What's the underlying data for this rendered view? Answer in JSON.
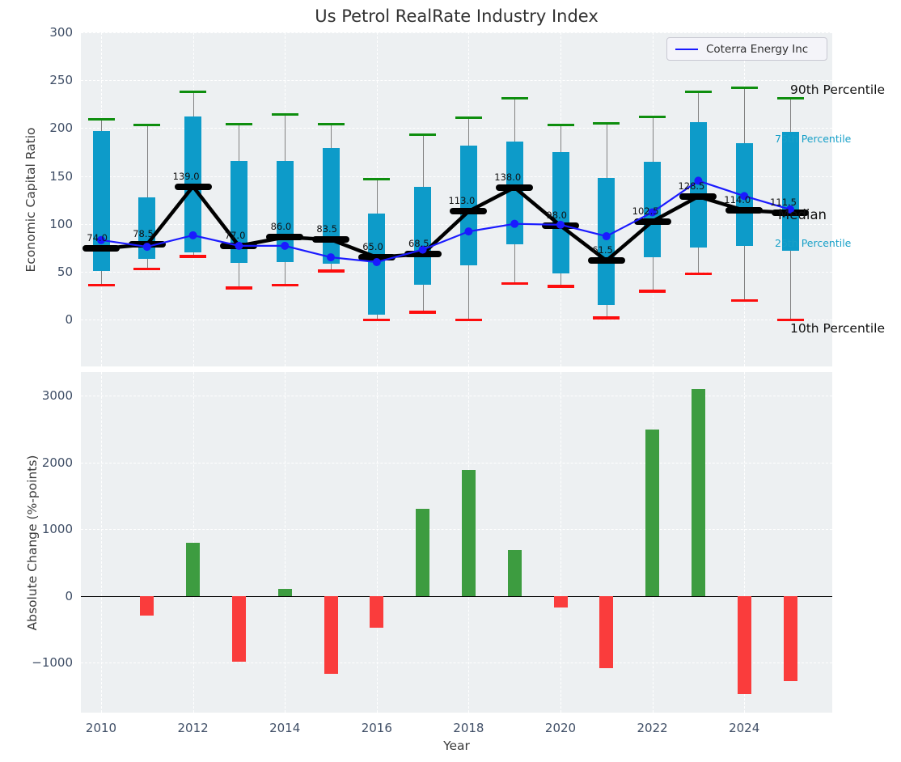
{
  "title": "Us Petrol RealRate Industry Index",
  "legend": {
    "label": "Coterra Energy Inc",
    "line_color": "#1a1aff"
  },
  "annotations": {
    "p90": "90th Percentile",
    "p75": "75th Percentile",
    "median": "Median",
    "p25": "25th Percentile",
    "p10": "10th Percentile"
  },
  "colors": {
    "box_fill": "#0d9bc9",
    "p90_cap": "#0e8e0e",
    "p10_cap": "#fd0d0d",
    "median_line": "#000000",
    "coterra_line": "#1a1aff",
    "bar_positive": "#3d9c40",
    "bar_negative": "#fa3c3c",
    "plot_background": "#edf0f2",
    "tick_text": "#3f4e66",
    "cyan_label": "#18a0c8"
  },
  "chart_data": [
    {
      "type": "boxplot+line",
      "title": "Us Petrol RealRate Industry Index",
      "ylabel": "Economic Capital Ratio",
      "ylim": [
        -50,
        300
      ],
      "yticks": [
        300,
        250,
        200,
        150,
        100,
        50,
        0
      ],
      "grid": true,
      "legend_position": "upper right",
      "years": [
        2010,
        2011,
        2012,
        2013,
        2014,
        2015,
        2016,
        2017,
        2018,
        2019,
        2020,
        2021,
        2022,
        2023,
        2024,
        2025
      ],
      "series": [
        {
          "name": "90th Percentile",
          "values": [
            209,
            203,
            238,
            204,
            214,
            204,
            147,
            193,
            211,
            231,
            203,
            205,
            212,
            238,
            242,
            231
          ]
        },
        {
          "name": "75th Percentile",
          "values": [
            197,
            128,
            212,
            166,
            166,
            179,
            111,
            139,
            182,
            186,
            175,
            148,
            165,
            206,
            184,
            196
          ]
        },
        {
          "name": "Median",
          "values": [
            74.0,
            78.5,
            139.0,
            77.0,
            86.0,
            83.5,
            65.0,
            68.5,
            113.0,
            138.0,
            98.0,
            61.5,
            102.5,
            128.5,
            114.0,
            111.5
          ]
        },
        {
          "name": "25th Percentile",
          "values": [
            51,
            63,
            70,
            59,
            60,
            58,
            5,
            36,
            57,
            79,
            48,
            15,
            65,
            75,
            77,
            72
          ]
        },
        {
          "name": "10th Percentile",
          "values": [
            36,
            53,
            66,
            33,
            36,
            51,
            0,
            8,
            0,
            38,
            35,
            2,
            30,
            48,
            20,
            0
          ]
        },
        {
          "name": "Coterra Energy Inc",
          "values": [
            83,
            76,
            88,
            77,
            77,
            65,
            60,
            73,
            92,
            100,
            99,
            87,
            112,
            145,
            129,
            115
          ]
        }
      ],
      "median_labels": [
        "74.0",
        "78.5",
        "139.0",
        "77.0",
        "86.0",
        "83.5",
        "65.0",
        "68.5",
        "113.0",
        "138.0",
        "98.0",
        "61.5",
        "102.5",
        "128.5",
        "114.0",
        "111.5"
      ]
    },
    {
      "type": "bar",
      "ylabel": "Absolute Change (%-points)",
      "xlabel": "Year",
      "ylim": [
        -1750,
        3350
      ],
      "yticks": [
        3000,
        2000,
        1000,
        0,
        -1000
      ],
      "ytick_labels": [
        "3000",
        "2000",
        "1000",
        "0",
        "−1000"
      ],
      "xticks": [
        2010,
        2012,
        2014,
        2016,
        2018,
        2020,
        2022,
        2024
      ],
      "grid": true,
      "years": [
        2011,
        2012,
        2013,
        2014,
        2015,
        2016,
        2017,
        2018,
        2019,
        2020,
        2021,
        2022,
        2023,
        2024,
        2025
      ],
      "values": [
        -300,
        800,
        -980,
        100,
        -1170,
        -480,
        1300,
        1890,
        690,
        -170,
        -1080,
        2490,
        3100,
        -1470,
        -1270
      ]
    }
  ]
}
